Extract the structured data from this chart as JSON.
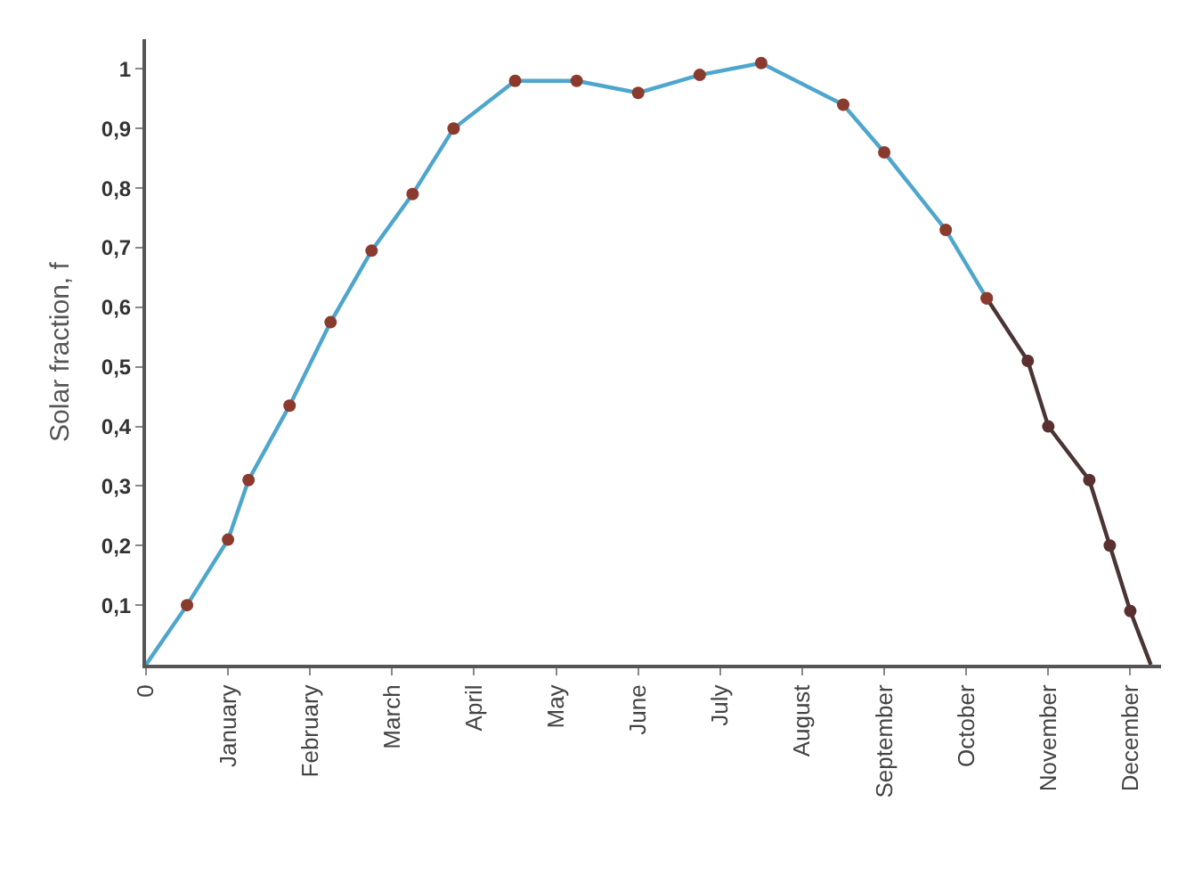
{
  "chart_data": {
    "type": "line",
    "ylabel": "Solar fraction, f",
    "categories": [
      "0",
      null,
      null,
      null,
      "January",
      null,
      null,
      null,
      "February",
      null,
      null,
      null,
      "March",
      null,
      null,
      null,
      "April",
      null,
      null,
      null,
      "May",
      null,
      null,
      null,
      "June",
      null,
      null,
      null,
      "July",
      null,
      null,
      null,
      "August",
      null,
      null,
      null,
      "September",
      null,
      null,
      null,
      "October",
      null,
      null,
      null,
      "November",
      null,
      null,
      null,
      "December",
      null
    ],
    "ylim": [
      0,
      1.05
    ],
    "yticks": [
      {
        "value": 0.1,
        "label": "0,1"
      },
      {
        "value": 0.2,
        "label": "0,2"
      },
      {
        "value": 0.3,
        "label": "0,3"
      },
      {
        "value": 0.4,
        "label": "0,4"
      },
      {
        "value": 0.5,
        "label": "0,5"
      },
      {
        "value": 0.6,
        "label": "0,6"
      },
      {
        "value": 0.7,
        "label": "0,7"
      },
      {
        "value": 0.8,
        "label": "0,8"
      },
      {
        "value": 0.9,
        "label": "0,9"
      },
      1
    ],
    "grid": false,
    "marker": "circle",
    "line_style": "solid",
    "series": [
      {
        "color": "#4ea6cc",
        "values": [
          0,
          null,
          0.1,
          null,
          0.21,
          0.31,
          null,
          0.435,
          null,
          0.575,
          null,
          0.695,
          null,
          0.79,
          null,
          0.9,
          null,
          null,
          0.98,
          null,
          null,
          0.98,
          null,
          null,
          0.96,
          null,
          null,
          0.99,
          null,
          null,
          1.01,
          null,
          null,
          null,
          0.94,
          null,
          0.86,
          null,
          null,
          0.73,
          null,
          0.615,
          null,
          null,
          null,
          null,
          null,
          null,
          null,
          null
        ],
        "colors": [
          null,
          null,
          "#8b3a2e",
          null,
          "#8b3a2e",
          "#8b3a2e",
          null,
          "#8b3a2e",
          null,
          "#8b3a2e",
          null,
          "#8b3a2e",
          null,
          "#8b3a2e",
          null,
          "#8b3a2e",
          null,
          null,
          "#8b3a2e",
          null,
          null,
          "#8b3a2e",
          null,
          null,
          "#8b3a2e",
          null,
          null,
          "#8b3a2e",
          null,
          null,
          "#8b3a2e",
          null,
          null,
          null,
          "#8b3a2e",
          null,
          "#8b3a2e",
          null,
          null,
          "#8b3a2e",
          null,
          "#8b3a2e",
          null,
          null,
          null,
          null,
          null,
          null,
          null,
          null
        ]
      },
      {
        "color": "#4a3434",
        "values": [
          null,
          null,
          null,
          null,
          null,
          null,
          null,
          null,
          null,
          null,
          null,
          null,
          null,
          null,
          null,
          null,
          null,
          null,
          null,
          null,
          null,
          null,
          null,
          null,
          null,
          null,
          null,
          null,
          null,
          null,
          null,
          null,
          null,
          null,
          null,
          null,
          null,
          null,
          null,
          null,
          null,
          0.615,
          null,
          0.51,
          0.4,
          null,
          0.31,
          0.2,
          0.09,
          0
        ],
        "colors": [
          null,
          null,
          null,
          null,
          null,
          null,
          null,
          null,
          null,
          null,
          null,
          null,
          null,
          null,
          null,
          null,
          null,
          null,
          null,
          null,
          null,
          null,
          null,
          null,
          null,
          null,
          null,
          null,
          null,
          null,
          null,
          null,
          null,
          null,
          null,
          null,
          null,
          null,
          null,
          null,
          null,
          "#8b3a2e",
          null,
          "#5a3030",
          "#5a3030",
          null,
          "#5a3030",
          "#5a3030",
          "#5a3030",
          null
        ]
      }
    ]
  }
}
